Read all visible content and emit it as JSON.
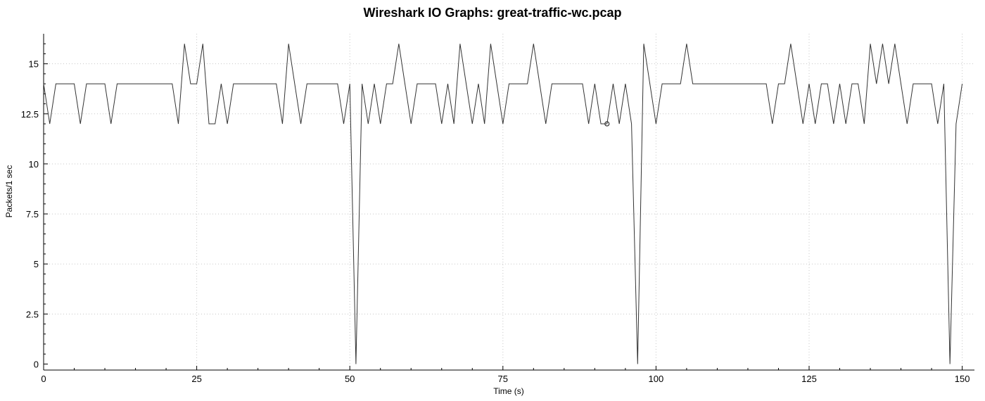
{
  "chart_data": {
    "type": "line",
    "title": "Wireshark IO Graphs: great-traffic-wc.pcap",
    "xlabel": "Time (s)",
    "ylabel": "Packets/1 sec",
    "xlim": [
      0,
      152
    ],
    "ylim": [
      -0.3,
      16.5
    ],
    "x_ticks": [
      0,
      25,
      50,
      75,
      100,
      125,
      150
    ],
    "x_tick_labels": [
      "0",
      "25",
      "50",
      "75",
      "100",
      "125",
      "150"
    ],
    "y_ticks": [
      0,
      2.5,
      5,
      7.5,
      10,
      12.5,
      15
    ],
    "y_tick_labels": [
      "0",
      "2.5",
      "5",
      "7.5",
      "10",
      "12.5",
      "15"
    ],
    "grid": true,
    "line_color": "#333333",
    "series": [
      {
        "values": [
          14,
          12,
          14,
          14,
          14,
          14,
          12,
          14,
          14,
          14,
          14,
          12,
          14,
          14,
          14,
          14,
          14,
          14,
          14,
          14,
          14,
          14,
          12,
          16,
          14,
          14,
          16,
          12,
          12,
          14,
          12,
          14,
          14,
          14,
          14,
          14,
          14,
          14,
          14,
          12,
          16,
          14,
          12,
          14,
          14,
          14,
          14,
          14,
          14,
          12,
          14,
          0,
          14,
          12,
          14,
          12,
          14,
          14,
          16,
          14,
          12,
          14,
          14,
          14,
          14,
          12,
          14,
          12,
          16,
          14,
          12,
          14,
          12,
          16,
          14,
          12,
          14,
          14,
          14,
          14,
          16,
          14,
          12,
          14,
          14,
          14,
          14,
          14,
          14,
          12,
          14,
          12,
          12,
          14,
          12,
          14,
          12,
          0,
          16,
          14,
          12,
          14,
          14,
          14,
          14,
          16,
          14,
          14,
          14,
          14,
          14,
          14,
          14,
          14,
          14,
          14,
          14,
          14,
          14,
          12,
          14,
          14,
          16,
          14,
          12,
          14,
          12,
          14,
          14,
          12,
          14,
          12,
          14,
          14,
          12,
          16,
          14,
          16,
          14,
          16,
          14,
          12,
          14,
          14,
          14,
          14,
          12,
          14,
          0,
          12,
          14
        ]
      }
    ],
    "marker": {
      "x": 92,
      "y": 12
    }
  }
}
